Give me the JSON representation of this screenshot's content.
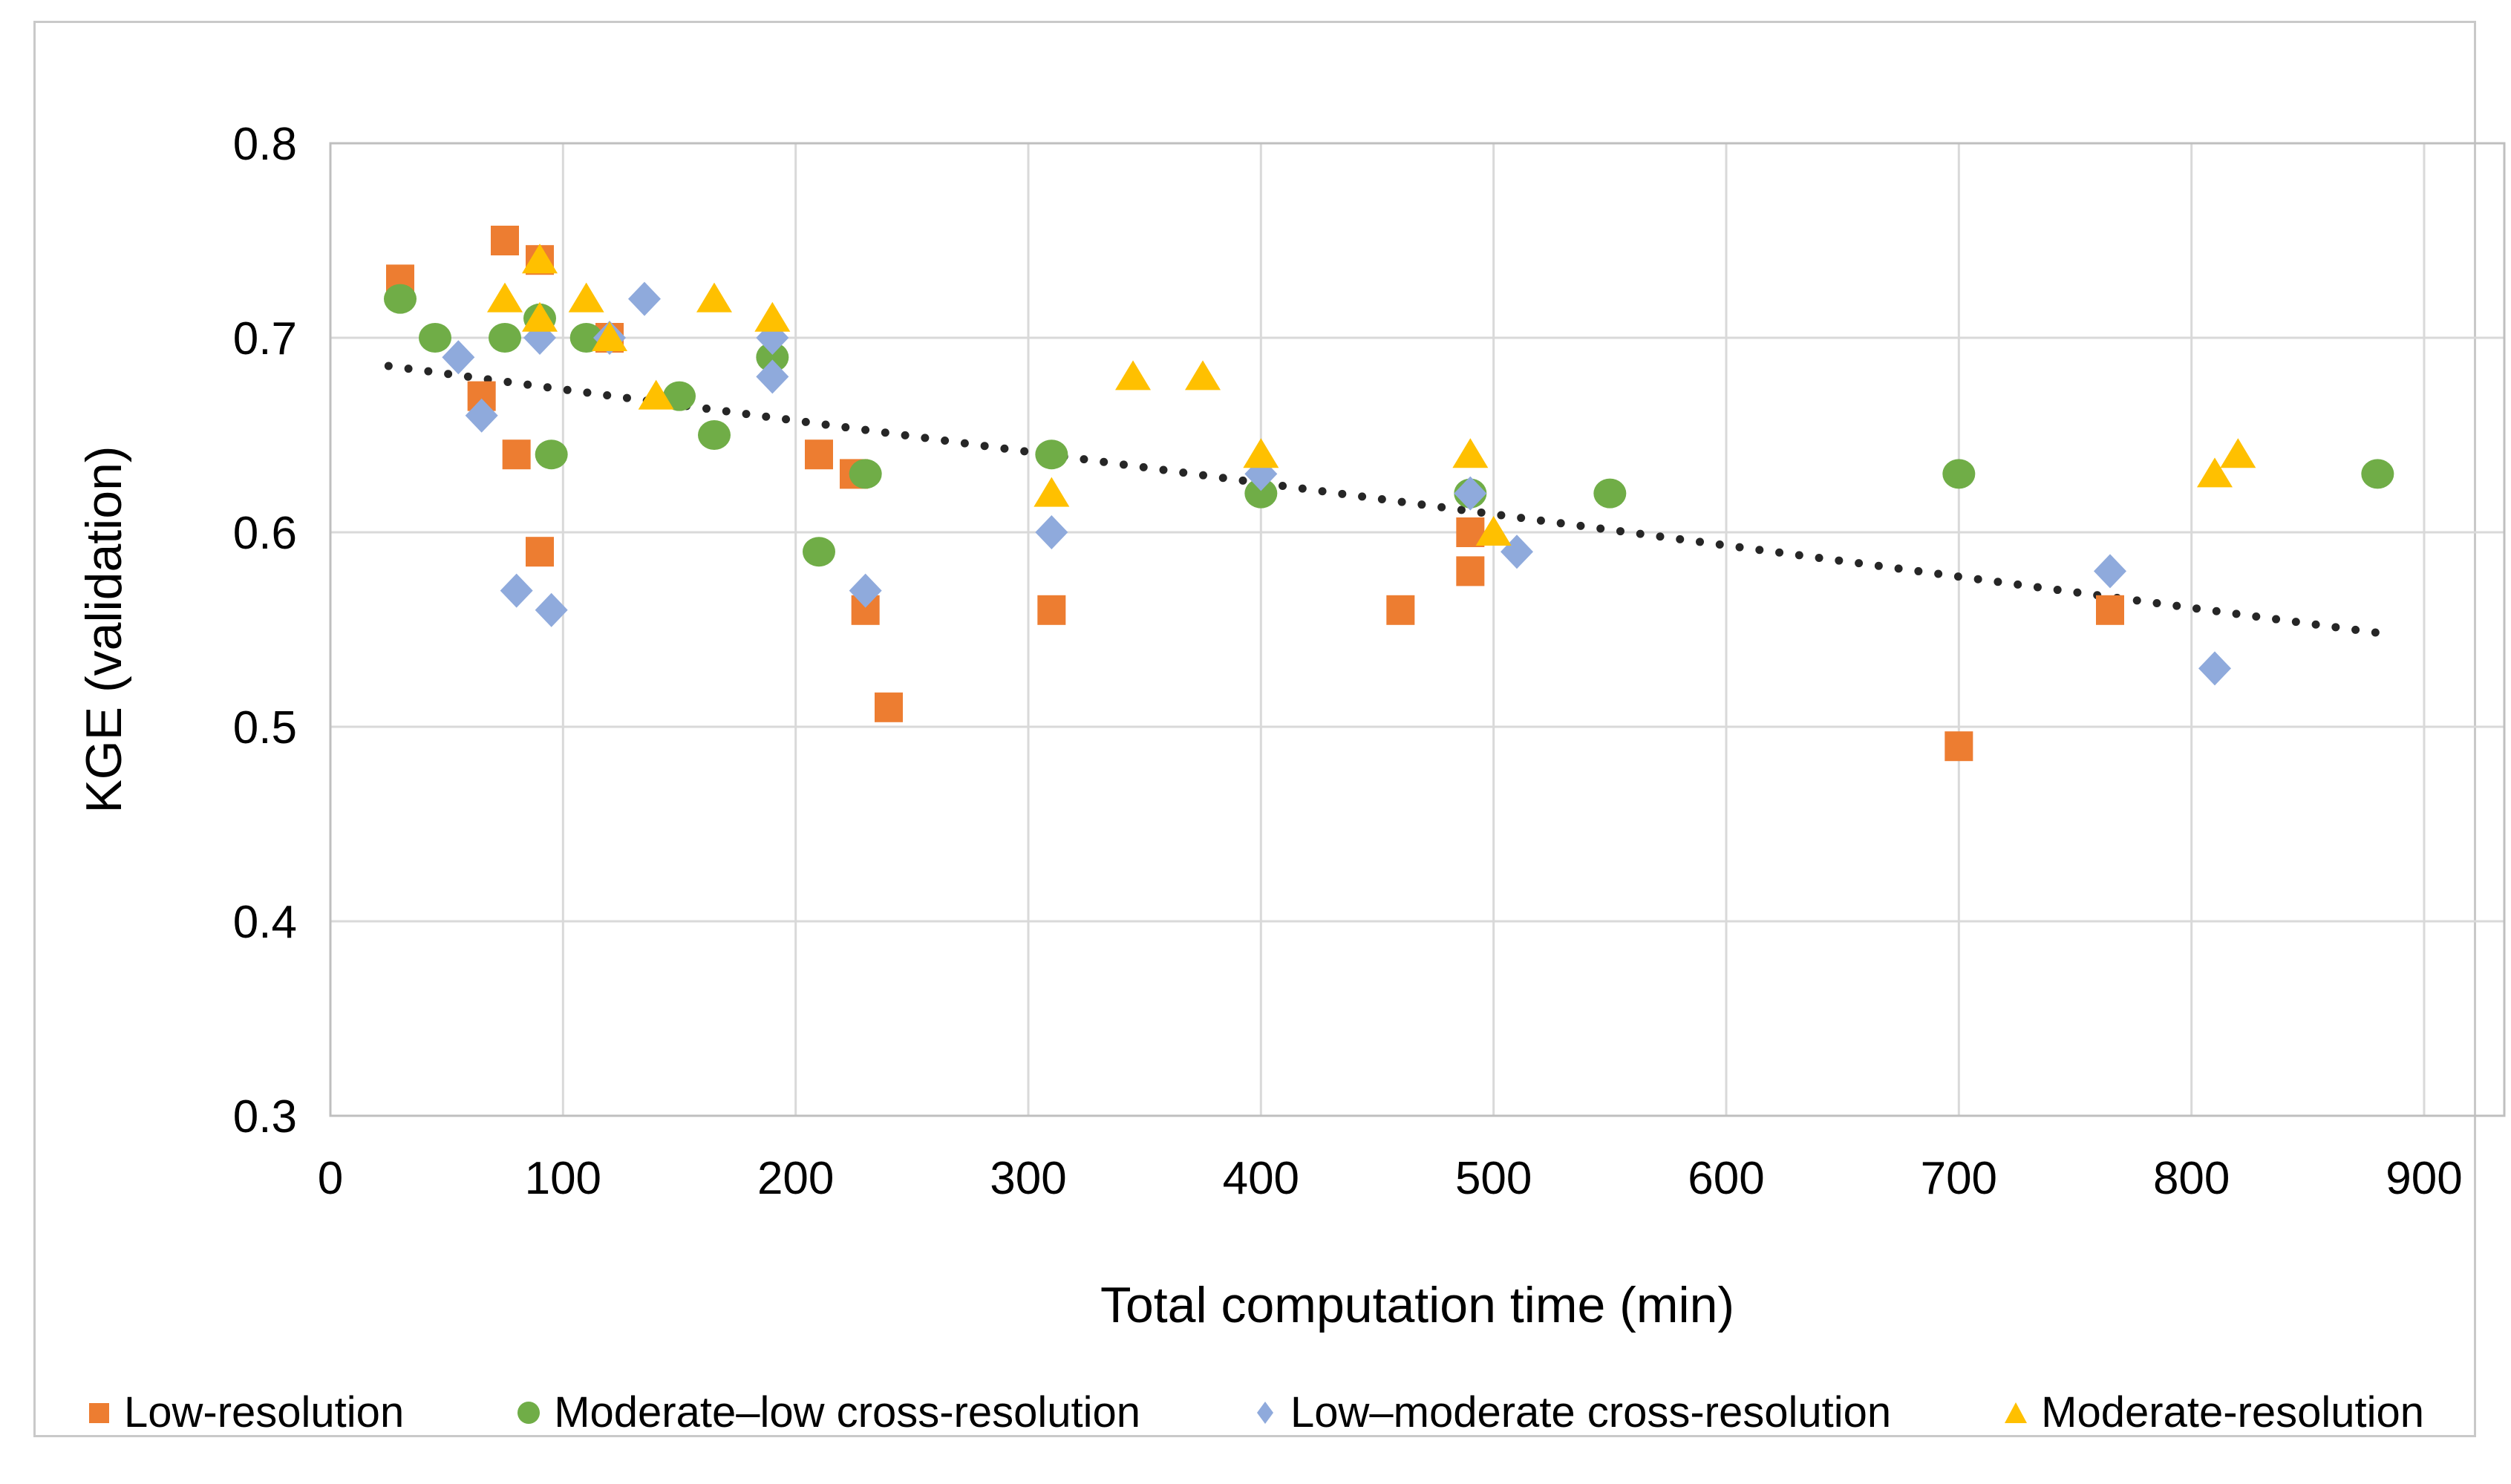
{
  "figure": {
    "background": "#ffffff",
    "border_color": "#c9c9c9"
  },
  "chart_data": {
    "type": "scatter",
    "title": "",
    "xlabel": "Total computation time (min)",
    "ylabel": "KGE (validation)",
    "xlim": [
      0,
      900
    ],
    "ylim": [
      0.3,
      0.8
    ],
    "x_ticks": [
      "0",
      "100",
      "200",
      "300",
      "400",
      "500",
      "600",
      "700",
      "800",
      "900"
    ],
    "y_ticks": [
      "0.8",
      "0.7",
      "0.6",
      "0.5",
      "0.4",
      "0.3"
    ],
    "grid": true,
    "grid_color": "#d9d9d9",
    "axis_color": "#bfbfbf",
    "legend_position": "bottom",
    "series": [
      {
        "name": "Low-resolution",
        "marker": "square",
        "color": "#ED7D31",
        "points": [
          [
            30,
            0.73
          ],
          [
            65,
            0.67
          ],
          [
            75,
            0.75
          ],
          [
            80,
            0.64
          ],
          [
            90,
            0.74
          ],
          [
            90,
            0.59
          ],
          [
            120,
            0.7
          ],
          [
            210,
            0.64
          ],
          [
            225,
            0.63
          ],
          [
            230,
            0.56
          ],
          [
            240,
            0.51
          ],
          [
            310,
            0.56
          ],
          [
            460,
            0.56
          ],
          [
            490,
            0.6
          ],
          [
            490,
            0.58
          ],
          [
            700,
            0.49
          ],
          [
            765,
            0.56
          ]
        ]
      },
      {
        "name": "Moderate–low cross-resolution",
        "marker": "circle",
        "color": "#70AD47",
        "points": [
          [
            30,
            0.72
          ],
          [
            45,
            0.7
          ],
          [
            75,
            0.7
          ],
          [
            90,
            0.71
          ],
          [
            95,
            0.64
          ],
          [
            110,
            0.7
          ],
          [
            150,
            0.67
          ],
          [
            165,
            0.65
          ],
          [
            190,
            0.69
          ],
          [
            210,
            0.59
          ],
          [
            230,
            0.63
          ],
          [
            310,
            0.64
          ],
          [
            400,
            0.62
          ],
          [
            490,
            0.62
          ],
          [
            550,
            0.62
          ],
          [
            700,
            0.63
          ],
          [
            880,
            0.63
          ]
        ]
      },
      {
        "name": "Low–moderate cross-resolution",
        "marker": "diamond",
        "color": "#8FAADC",
        "points": [
          [
            55,
            0.69
          ],
          [
            65,
            0.66
          ],
          [
            80,
            0.57
          ],
          [
            90,
            0.7
          ],
          [
            95,
            0.56
          ],
          [
            120,
            0.7
          ],
          [
            135,
            0.72
          ],
          [
            190,
            0.7
          ],
          [
            190,
            0.68
          ],
          [
            230,
            0.57
          ],
          [
            310,
            0.6
          ],
          [
            400,
            0.63
          ],
          [
            490,
            0.62
          ],
          [
            510,
            0.59
          ],
          [
            765,
            0.58
          ],
          [
            810,
            0.53
          ]
        ]
      },
      {
        "name": "Moderate-resolution",
        "marker": "triangle",
        "color": "#FFC000",
        "points": [
          [
            75,
            0.72
          ],
          [
            90,
            0.74
          ],
          [
            90,
            0.71
          ],
          [
            110,
            0.72
          ],
          [
            120,
            0.7
          ],
          [
            140,
            0.67
          ],
          [
            165,
            0.72
          ],
          [
            190,
            0.71
          ],
          [
            310,
            0.62
          ],
          [
            345,
            0.68
          ],
          [
            375,
            0.68
          ],
          [
            400,
            0.64
          ],
          [
            490,
            0.64
          ],
          [
            500,
            0.6
          ],
          [
            810,
            0.63
          ],
          [
            820,
            0.64
          ]
        ]
      }
    ],
    "trendline": {
      "style": "dotted",
      "color": "#262626",
      "from": [
        25,
        0.6855
      ],
      "to": [
        882,
        0.548
      ]
    }
  }
}
